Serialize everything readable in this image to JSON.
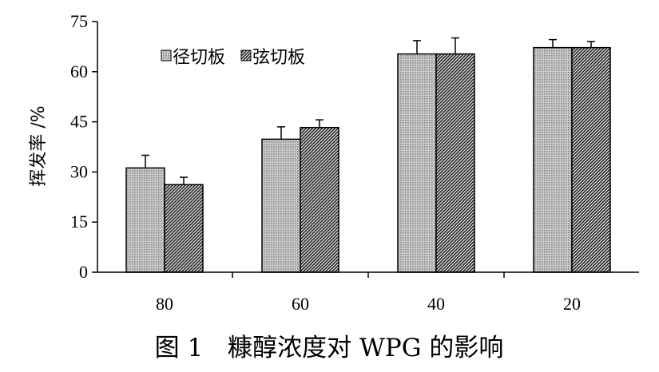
{
  "chart_data": {
    "type": "bar",
    "categories": [
      "80",
      "60",
      "40",
      "20"
    ],
    "series": [
      {
        "name": "径切板",
        "values": [
          31.2,
          39.8,
          65.3,
          67.2
        ],
        "errors": [
          3.8,
          3.7,
          4.0,
          2.4
        ],
        "pattern": "dots",
        "color": "#bdbdbd"
      },
      {
        "name": "弦切板",
        "values": [
          26.2,
          43.3,
          65.3,
          67.2
        ],
        "errors": [
          2.2,
          2.3,
          4.8,
          1.8
        ],
        "pattern": "hatch",
        "color": "#3a3a3a"
      }
    ],
    "ylabel": "挥发率 /%",
    "xlabel": "",
    "ylim": [
      0,
      75
    ],
    "yticks": [
      0,
      15,
      30,
      45,
      60,
      75
    ],
    "caption": "图 1　糠醇浓度对 WPG 的影响",
    "legend_position": "top-left",
    "grid": false
  }
}
